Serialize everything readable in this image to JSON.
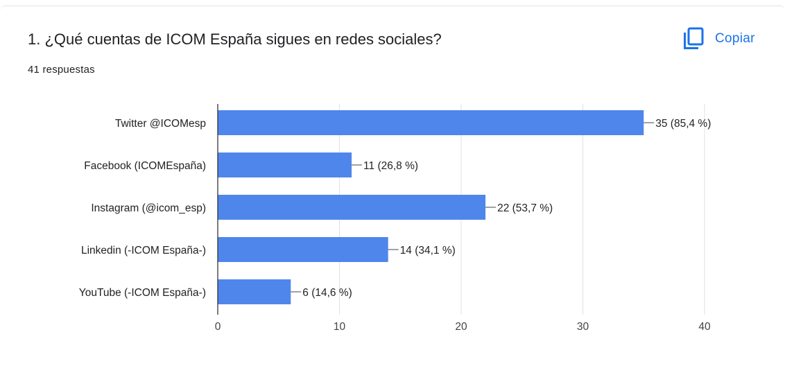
{
  "question": {
    "title": "1. ¿Qué cuentas de ICOM España sigues en redes sociales?",
    "responses": "41 respuestas"
  },
  "toolbar": {
    "copy_label": "Copiar",
    "copy_icon": "copy-icon",
    "accent_color": "#1a73e8"
  },
  "chart_data": {
    "type": "bar",
    "orientation": "horizontal",
    "categories": [
      "Twitter @ICOMesp",
      "Facebook (ICOMEspaña)",
      "Instagram (@icom_esp)",
      "Linkedin (-ICOM España-)",
      "YouTube (-ICOM España-)"
    ],
    "values": [
      35,
      11,
      22,
      14,
      6
    ],
    "data_labels": [
      "35 (85,4 %)",
      "11 (26,8 %)",
      "22 (53,7 %)",
      "14 (34,1 %)",
      "6 (14,6 %)"
    ],
    "xlim": [
      0,
      40
    ],
    "xticks": [
      0,
      10,
      20,
      30,
      40
    ],
    "grid": true,
    "bar_color": "#4f86ec"
  }
}
